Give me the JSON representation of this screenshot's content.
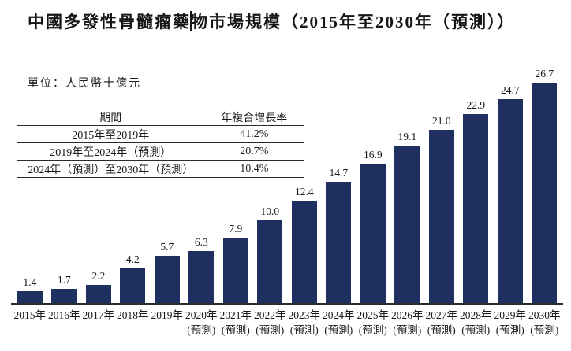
{
  "title": {
    "part1": "中國多發性骨髓瘤藥",
    "part2": "物市場規模（2015年至2030年（預測））"
  },
  "unit_label": "單位：人民幣十億元",
  "cagr_table": {
    "headers": {
      "period": "期間",
      "cagr": "年複合增長率"
    },
    "rows": [
      {
        "period": "2015年至2019年",
        "cagr": "41.2%"
      },
      {
        "period": "2019年至2024年（預測）",
        "cagr": "20.7%"
      },
      {
        "period": "2024年（預測）至2030年（預測）",
        "cagr": "10.4%"
      }
    ]
  },
  "chart_data": {
    "type": "bar",
    "title": "中國多發性骨髓瘤藥物市場規模（2015年至2030年（預測））",
    "ylabel": "人民幣十億元",
    "categories": [
      "2015年",
      "2016年",
      "2017年",
      "2018年",
      "2019年",
      "2020年",
      "2021年",
      "2022年",
      "2023年",
      "2024年",
      "2025年",
      "2026年",
      "2027年",
      "2028年",
      "2029年",
      "2030年"
    ],
    "forecast_label": "(預測)",
    "forecast_start_index": 5,
    "values": [
      1.4,
      1.7,
      2.2,
      4.2,
      5.7,
      6.3,
      7.9,
      10.0,
      12.4,
      14.7,
      16.9,
      19.1,
      21.0,
      22.9,
      24.7,
      26.7
    ],
    "ylim": [
      0,
      26.7
    ],
    "bar_color": "#1f3060",
    "grid": false,
    "legend": false
  }
}
